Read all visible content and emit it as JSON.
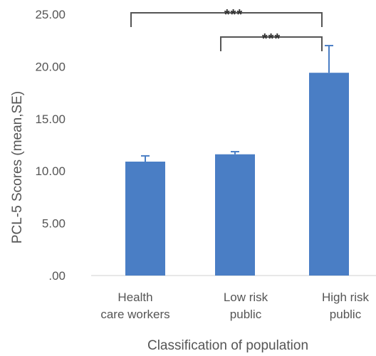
{
  "chart_data": {
    "type": "bar",
    "title": "",
    "xlabel": "Classification of  population",
    "ylabel": "PCL-5 Scores (mean,SE)",
    "ylim": [
      0,
      25
    ],
    "yticks": [
      "25.00",
      "20.00",
      "15.00",
      "10.00",
      "5.00",
      ".00"
    ],
    "categories": [
      [
        "Health",
        "care workers"
      ],
      [
        "Low risk",
        "public"
      ],
      [
        "High risk",
        "public"
      ]
    ],
    "values": [
      10.9,
      11.6,
      19.4
    ],
    "errors": [
      0.55,
      0.25,
      2.6
    ],
    "bar_color": "#4a7ec5",
    "grid": false,
    "significance": [
      {
        "from": 0,
        "to": 2,
        "label": "***"
      },
      {
        "from": 1,
        "to": 2,
        "label": "***"
      }
    ]
  }
}
